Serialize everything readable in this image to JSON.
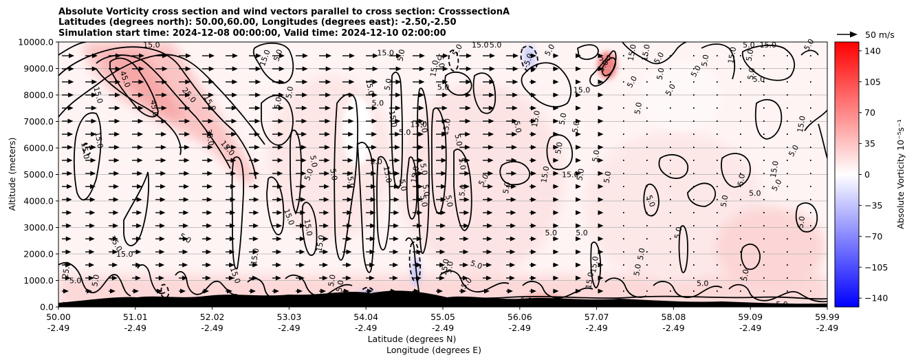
{
  "chart_data": {
    "type": "heatmap",
    "title_lines": [
      "Absolute Vorticity cross section and wind vectors parallel to cross section: CrosssectionA",
      "Latitudes (degrees north): 50.00,60.00, Longitudes (degrees east): -2.50,-2.50",
      "Simulation start time: 2024-12-08 00:00:00, Valid time: 2024-12-10 02:00:00"
    ],
    "ylabel": "Altitude (meters)",
    "xlabel_lat": "Latitude (degrees N)",
    "xlabel_lon": "Longitude (degrees E)",
    "ylim": [
      0,
      10000
    ],
    "xlim": [
      50.0,
      59.99
    ],
    "y_ticks": [
      0,
      1000,
      2000,
      3000,
      4000,
      5000,
      6000,
      7000,
      8000,
      9000,
      10000
    ],
    "y_tick_labels": [
      "0.0",
      "1000.0",
      "2000.0",
      "3000.0",
      "4000.0",
      "5000.0",
      "6000.0",
      "7000.0",
      "8000.0",
      "9000.0",
      "10000.0"
    ],
    "x_ticks": [
      {
        "lat": "50.00",
        "lon": "-2.49"
      },
      {
        "lat": "51.01",
        "lon": "-2.49"
      },
      {
        "lat": "52.02",
        "lon": "-2.49"
      },
      {
        "lat": "53.03",
        "lon": "-2.49"
      },
      {
        "lat": "54.04",
        "lon": "-2.49"
      },
      {
        "lat": "55.05",
        "lon": "-2.49"
      },
      {
        "lat": "56.06",
        "lon": "-2.49"
      },
      {
        "lat": "57.07",
        "lon": "-2.49"
      },
      {
        "lat": "58.08",
        "lon": "-2.49"
      },
      {
        "lat": "59.09",
        "lon": "-2.49"
      },
      {
        "lat": "59.99",
        "lon": "-2.49"
      }
    ],
    "grid": "horizontal",
    "colorbar": {
      "label": "Absolute Vorticity 10⁻⁵s⁻¹",
      "range": [
        -150,
        150
      ],
      "ticks": [
        140,
        105,
        70,
        35,
        0,
        -35,
        -70,
        -105,
        -140
      ],
      "tick_labels": [
        "140",
        "105",
        "70",
        "35",
        "0",
        "−35",
        "−70",
        "−105",
        "−140"
      ],
      "colors": [
        "#0000ff",
        "#ffffff",
        "#ff0000"
      ]
    },
    "quiver_key": {
      "label": "50 m/s"
    },
    "contour_levels": [
      "5.0",
      "15.0",
      "25.0",
      "35.0",
      "45.0",
      "-5.0"
    ],
    "contour_labels": [
      {
        "text": "15.0",
        "x": 51.21,
        "y": 9900,
        "angle": 0
      },
      {
        "text": "5.0",
        "x": 52.85,
        "y": 9500,
        "angle": -70
      },
      {
        "text": "15.0",
        "x": 52.68,
        "y": 9400,
        "angle": -70
      },
      {
        "text": "45.0",
        "x": 50.87,
        "y": 8600,
        "angle": 70
      },
      {
        "text": "25.0",
        "x": 51.7,
        "y": 8000,
        "angle": 50
      },
      {
        "text": "15.0",
        "x": 51.97,
        "y": 7700,
        "angle": 60
      },
      {
        "text": "45.0",
        "x": 51.25,
        "y": 7500,
        "angle": 80
      },
      {
        "text": "15.0",
        "x": 50.52,
        "y": 8000,
        "angle": 75
      },
      {
        "text": "35.0",
        "x": 51.97,
        "y": 6400,
        "angle": 80
      },
      {
        "text": "15.0",
        "x": 52.2,
        "y": 6000,
        "angle": 50
      },
      {
        "text": "15.0",
        "x": 50.53,
        "y": 6300,
        "angle": 80
      },
      {
        "text": "15.0",
        "x": 50.35,
        "y": 5900,
        "angle": 80
      },
      {
        "text": "5.0",
        "x": 53.0,
        "y": 8100,
        "angle": -80
      },
      {
        "text": "5.0",
        "x": 52.85,
        "y": 7700,
        "angle": -80
      },
      {
        "text": "15.0",
        "x": 54.25,
        "y": 9600,
        "angle": 0
      },
      {
        "text": "5.0",
        "x": 54.45,
        "y": 9500,
        "angle": -80
      },
      {
        "text": "-5.0",
        "x": 54.97,
        "y": 9300,
        "angle": 80
      },
      {
        "text": "5.0",
        "x": 55.18,
        "y": 9700,
        "angle": -60
      },
      {
        "text": "15.0",
        "x": 55.48,
        "y": 9900,
        "angle": 0
      },
      {
        "text": "5.0",
        "x": 55.68,
        "y": 9900,
        "angle": 0
      },
      {
        "text": "-5.0",
        "x": 56.1,
        "y": 9300,
        "angle": -70
      },
      {
        "text": "5.0",
        "x": 56.38,
        "y": 9700,
        "angle": -60
      },
      {
        "text": "15.0",
        "x": 54.88,
        "y": 9000,
        "angle": -80
      },
      {
        "text": "5.0",
        "x": 55.0,
        "y": 8300,
        "angle": 0
      },
      {
        "text": "15.0",
        "x": 54.05,
        "y": 8300,
        "angle": 80
      },
      {
        "text": "5.0",
        "x": 54.28,
        "y": 8400,
        "angle": -80
      },
      {
        "text": "5.0",
        "x": 54.15,
        "y": 7700,
        "angle": 0
      },
      {
        "text": "15.0",
        "x": 56.8,
        "y": 8200,
        "angle": 0
      },
      {
        "text": "5.0",
        "x": 57.53,
        "y": 7500,
        "angle": -80
      },
      {
        "text": "15.0",
        "x": 56.2,
        "y": 7100,
        "angle": -80
      },
      {
        "text": "5.0",
        "x": 56.55,
        "y": 7100,
        "angle": -80
      },
      {
        "text": "5.0",
        "x": 56.72,
        "y": 6800,
        "angle": -80
      },
      {
        "text": "5.0",
        "x": 55.97,
        "y": 6800,
        "angle": 80
      },
      {
        "text": "15.0",
        "x": 54.35,
        "y": 7100,
        "angle": 80
      },
      {
        "text": "15.0",
        "x": 54.68,
        "y": 6900,
        "angle": 0
      },
      {
        "text": "15.0",
        "x": 55.04,
        "y": 6800,
        "angle": -80
      },
      {
        "text": "5.0",
        "x": 54.5,
        "y": 6600,
        "angle": 0
      },
      {
        "text": "5.0",
        "x": 54.75,
        "y": 6800,
        "angle": 80
      },
      {
        "text": "5.0",
        "x": 55.2,
        "y": 6300,
        "angle": 80
      },
      {
        "text": "5.0",
        "x": 56.5,
        "y": 6000,
        "angle": -80
      },
      {
        "text": "5.0",
        "x": 56.98,
        "y": 5700,
        "angle": -80
      },
      {
        "text": "5.0",
        "x": 55.25,
        "y": 5400,
        "angle": 80
      },
      {
        "text": "5.0",
        "x": 54.13,
        "y": 5500,
        "angle": 0
      },
      {
        "text": "5.0",
        "x": 53.25,
        "y": 5000,
        "angle": -70
      },
      {
        "text": "5.0",
        "x": 53.32,
        "y": 5500,
        "angle": 80
      },
      {
        "text": "5.0",
        "x": 53.58,
        "y": 5000,
        "angle": 80
      },
      {
        "text": "15.0",
        "x": 54.28,
        "y": 5000,
        "angle": 80
      },
      {
        "text": "15.0",
        "x": 54.63,
        "y": 5000,
        "angle": -80
      },
      {
        "text": "5.0",
        "x": 54.75,
        "y": 5200,
        "angle": 80
      },
      {
        "text": "15.0",
        "x": 53.8,
        "y": 4800,
        "angle": 80
      },
      {
        "text": "5.0",
        "x": 54.48,
        "y": 4600,
        "angle": 80
      },
      {
        "text": "5.0",
        "x": 55.52,
        "y": 4800,
        "angle": -60
      },
      {
        "text": "5.0",
        "x": 54.78,
        "y": 4400,
        "angle": 80
      },
      {
        "text": "5.0",
        "x": 54.75,
        "y": 4000,
        "angle": 80
      },
      {
        "text": "15.0",
        "x": 56.65,
        "y": 5000,
        "angle": 0
      },
      {
        "text": "15.0",
        "x": 56.32,
        "y": 5000,
        "angle": -80
      },
      {
        "text": "5.0",
        "x": 56.78,
        "y": 5000,
        "angle": -80
      },
      {
        "text": "5.0",
        "x": 57.13,
        "y": 4900,
        "angle": -80
      },
      {
        "text": "5.0",
        "x": 55.25,
        "y": 4400,
        "angle": -80
      },
      {
        "text": "5.0",
        "x": 55.82,
        "y": 4500,
        "angle": -80
      },
      {
        "text": "5.0",
        "x": 55.08,
        "y": 4000,
        "angle": 80
      },
      {
        "text": "5.0",
        "x": 57.7,
        "y": 4000,
        "angle": 70
      },
      {
        "text": "5.0",
        "x": 58.65,
        "y": 4000,
        "angle": -80
      },
      {
        "text": "5.0",
        "x": 59.33,
        "y": 4600,
        "angle": -60
      },
      {
        "text": "15.0",
        "x": 59.3,
        "y": 5200,
        "angle": -80
      },
      {
        "text": "5.0",
        "x": 58.87,
        "y": 4800,
        "angle": -80
      },
      {
        "text": "5.0",
        "x": 59.05,
        "y": 4300,
        "angle": 0
      },
      {
        "text": "5.0",
        "x": 59.55,
        "y": 5900,
        "angle": -60
      },
      {
        "text": "15.0",
        "x": 59.65,
        "y": 6900,
        "angle": -80
      },
      {
        "text": "5.0",
        "x": 59.0,
        "y": 8800,
        "angle": -80
      },
      {
        "text": "5.0",
        "x": 59.1,
        "y": 8600,
        "angle": 0
      },
      {
        "text": "5.0",
        "x": 58.28,
        "y": 8900,
        "angle": -60
      },
      {
        "text": "5.0",
        "x": 58.4,
        "y": 9300,
        "angle": -80
      },
      {
        "text": "15.0",
        "x": 58.75,
        "y": 9500,
        "angle": -80
      },
      {
        "text": "5.0",
        "x": 58.98,
        "y": 9500,
        "angle": -80
      },
      {
        "text": "5.0",
        "x": 58.97,
        "y": 9900,
        "angle": 0
      },
      {
        "text": "15.0",
        "x": 59.22,
        "y": 9900,
        "angle": 0
      },
      {
        "text": "5.0",
        "x": 59.75,
        "y": 9900,
        "angle": -60
      },
      {
        "text": "5.0",
        "x": 57.8,
        "y": 9400,
        "angle": -60
      },
      {
        "text": "5.0",
        "x": 57.82,
        "y": 8800,
        "angle": -80
      },
      {
        "text": "5.0",
        "x": 57.95,
        "y": 8200,
        "angle": -60
      },
      {
        "text": "15.0",
        "x": 57.45,
        "y": 9600,
        "angle": -80
      },
      {
        "text": "15.0",
        "x": 57.63,
        "y": 9600,
        "angle": -80
      },
      {
        "text": "5.0",
        "x": 57.1,
        "y": 9400,
        "angle": 0
      },
      {
        "text": "5.0",
        "x": 57.08,
        "y": 9100,
        "angle": -60
      },
      {
        "text": "5.0",
        "x": 57.45,
        "y": 8500,
        "angle": -60
      },
      {
        "text": "5.0",
        "x": 56.4,
        "y": 2800,
        "angle": 0
      },
      {
        "text": "5.0",
        "x": 56.8,
        "y": 2800,
        "angle": 0
      },
      {
        "text": "5.0",
        "x": 59.65,
        "y": 3200,
        "angle": -80
      },
      {
        "text": "5.0",
        "x": 58.05,
        "y": 2800,
        "angle": -80
      },
      {
        "text": "5.0",
        "x": 57.57,
        "y": 2000,
        "angle": -80
      },
      {
        "text": "5.0",
        "x": 57.52,
        "y": 1400,
        "angle": -80
      },
      {
        "text": "5.0",
        "x": 58.92,
        "y": 1200,
        "angle": -80
      },
      {
        "text": "5.0",
        "x": 58.37,
        "y": 900,
        "angle": 0
      },
      {
        "text": "15.0",
        "x": 56.96,
        "y": 1600,
        "angle": -80
      },
      {
        "text": "15.0",
        "x": 56.9,
        "y": 1000,
        "angle": -80
      },
      {
        "text": "5.0",
        "x": 55.43,
        "y": 1600,
        "angle": 20
      },
      {
        "text": "15.0",
        "x": 55.02,
        "y": 1500,
        "angle": -80
      },
      {
        "text": "5.0",
        "x": 55.08,
        "y": 1500,
        "angle": -80
      },
      {
        "text": "5.0",
        "x": 55.3,
        "y": 900,
        "angle": -50
      },
      {
        "text": "5.0",
        "x": 56.08,
        "y": 250,
        "angle": 0
      },
      {
        "text": "5.0",
        "x": 59.4,
        "y": 100,
        "angle": 0
      },
      {
        "text": "5.0",
        "x": 50.22,
        "y": 1000,
        "angle": 0
      },
      {
        "text": "5.0",
        "x": 50.48,
        "y": 1000,
        "angle": -80
      },
      {
        "text": "15.0",
        "x": 50.75,
        "y": 2400,
        "angle": 60
      },
      {
        "text": "15.0",
        "x": 50.86,
        "y": 2000,
        "angle": 0
      },
      {
        "text": "5.0",
        "x": 51.65,
        "y": 2600,
        "angle": 30
      },
      {
        "text": "15.0",
        "x": 53.0,
        "y": 3400,
        "angle": 70
      },
      {
        "text": "15.0",
        "x": 53.25,
        "y": 3000,
        "angle": 80
      },
      {
        "text": "15.0",
        "x": 52.55,
        "y": 1900,
        "angle": -80
      },
      {
        "text": "15.0",
        "x": 52.3,
        "y": 1200,
        "angle": 70
      },
      {
        "text": "15.0",
        "x": 53.4,
        "y": 2400,
        "angle": -80
      },
      {
        "text": "5.0",
        "x": 53.55,
        "y": 1000,
        "angle": -80
      },
      {
        "text": "15.0",
        "x": 53.65,
        "y": 700,
        "angle": -80
      },
      {
        "text": "25.0",
        "x": 50.1,
        "y": 1400,
        "angle": -80
      }
    ]
  }
}
